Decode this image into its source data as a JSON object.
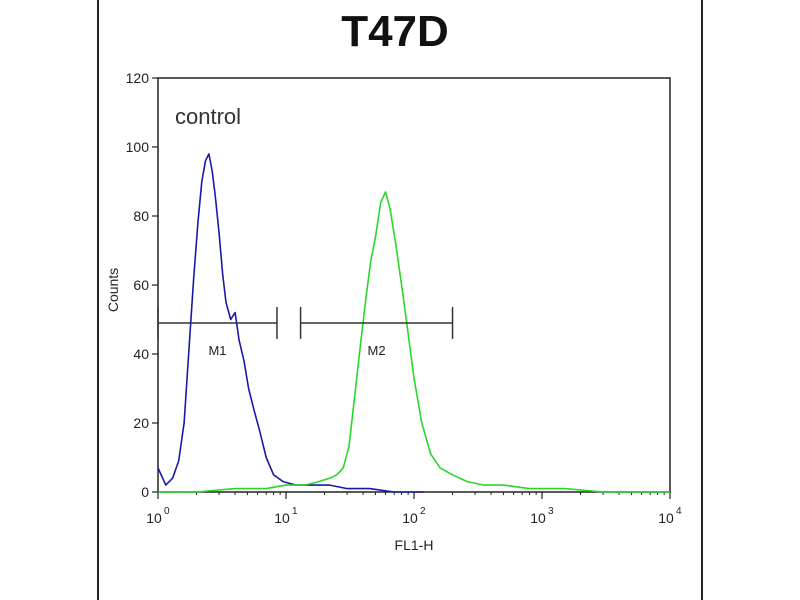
{
  "chart_data": {
    "type": "line",
    "title": "T47D",
    "xlabel": "FL1-H",
    "ylabel": "Counts",
    "annotation": "control",
    "xscale": "log",
    "xlim": [
      1,
      10000
    ],
    "ylim": [
      0,
      120
    ],
    "x_ticks": [
      {
        "base": "10",
        "exp": "0",
        "value": 1
      },
      {
        "base": "10",
        "exp": "1",
        "value": 10
      },
      {
        "base": "10",
        "exp": "2",
        "value": 100
      },
      {
        "base": "10",
        "exp": "3",
        "value": 1000
      },
      {
        "base": "10",
        "exp": "4",
        "value": 10000
      }
    ],
    "y_ticks": [
      "0",
      "20",
      "40",
      "60",
      "80",
      "100",
      "120"
    ],
    "markers": [
      {
        "label": "M1",
        "x_start": 1.0,
        "x_end": 8.5,
        "y": 49
      },
      {
        "label": "M2",
        "x_start": 13,
        "x_end": 200,
        "y": 49
      }
    ],
    "series": [
      {
        "color": "#1a1aa6",
        "x": [
          1.0,
          1.15,
          1.3,
          1.45,
          1.6,
          1.75,
          1.9,
          2.05,
          2.2,
          2.35,
          2.5,
          2.65,
          2.8,
          3.0,
          3.2,
          3.4,
          3.7,
          4.0,
          4.3,
          4.7,
          5.1,
          5.6,
          6.2,
          7.0,
          8.0,
          9.5,
          12,
          16,
          22,
          30,
          45,
          70,
          120
        ],
        "y": [
          7,
          2,
          4,
          9,
          20,
          42,
          62,
          78,
          90,
          96,
          98,
          93,
          86,
          75,
          63,
          55,
          50,
          52,
          44,
          38,
          30,
          24,
          18,
          10,
          5,
          3,
          2,
          2,
          2,
          1,
          1,
          0,
          0
        ]
      },
      {
        "color": "#2bd62b",
        "x": [
          1.0,
          2.0,
          4.0,
          7.0,
          10,
          14,
          18,
          22,
          25,
          28,
          31,
          34,
          38,
          42,
          46,
          50,
          55,
          60,
          65,
          72,
          80,
          90,
          100,
          115,
          135,
          160,
          200,
          260,
          350,
          500,
          800,
          1500,
          3000,
          10000
        ],
        "y": [
          0,
          0,
          1,
          1,
          2,
          2,
          3,
          4,
          5,
          7,
          13,
          26,
          42,
          56,
          67,
          74,
          84,
          87,
          82,
          72,
          60,
          46,
          33,
          20,
          11,
          7,
          5,
          3,
          2,
          2,
          1,
          1,
          0,
          0
        ]
      }
    ]
  }
}
